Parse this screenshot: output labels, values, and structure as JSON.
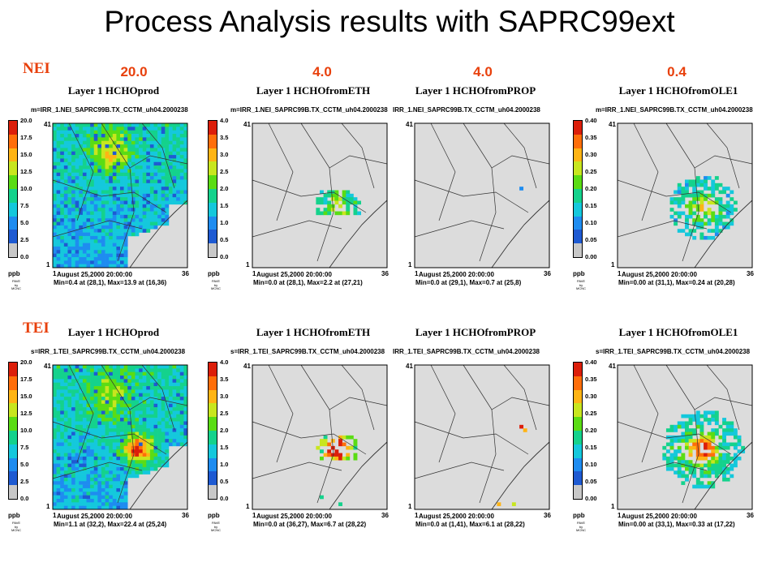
{
  "title": "Process Analysis results with SAPRC99ext",
  "row_labels": {
    "nei": "NEI",
    "tei": "TEI"
  },
  "scales": [
    "20.0",
    "4.0",
    "4.0",
    "0.4"
  ],
  "colors": {
    "accent": "#e8400c",
    "map_bg": "#dcdcdc",
    "legend": [
      "#c8c8c8",
      "#1e5ad2",
      "#1e8cf0",
      "#14c8dc",
      "#14d28c",
      "#5adc14",
      "#c8e61e",
      "#ffb414",
      "#ff6e0a",
      "#dc1e0a"
    ]
  },
  "panels": [
    {
      "title": "Layer 1  HCHOprod",
      "file": "m=IRR_1.NEI_SAPRC99B.TX_CCTM_uh04.2000238",
      "date": "August 25,2000 20:00:00",
      "minmax": "Min=0.4 at (28,1), Max=13.9 at (16,36)",
      "ticks": [
        "20.0",
        "17.5",
        "15.0",
        "12.5",
        "10.0",
        "7.5",
        "5.0",
        "2.5",
        "0.0"
      ],
      "unit": "ppb",
      "credit": "PAVE by MCNC",
      "y_top": "41",
      "y_bot": "1",
      "x_left": "1",
      "x_right": "36"
    },
    {
      "title": "Layer 1  HCHOfromETH",
      "file": "m=IRR_1.NEI_SAPRC99B.TX_CCTM_uh04.2000238",
      "date": "August 25,2000 20:00:00",
      "minmax": "Min=0.0 at (28,1), Max=2.2 at (27,21)",
      "ticks": [
        "4.0",
        "3.5",
        "3.0",
        "2.5",
        "2.0",
        "1.5",
        "1.0",
        "0.5",
        "0.0"
      ],
      "unit": "ppb",
      "credit": "PAVE by MCNC",
      "y_top": "41",
      "y_bot": "1",
      "x_left": "1",
      "x_right": "36"
    },
    {
      "title": "Layer 1  HCHOfromPROP",
      "file": "IRR_1.NEI_SAPRC99B.TX_CCTM_uh04.2000238",
      "date": "August 25,2000 20:00:00",
      "minmax": "Min=0.0 at (29,1), Max=0.7 at (25,8)",
      "ticks": [],
      "unit": "",
      "credit": "",
      "y_top": "41",
      "y_bot": "1",
      "x_left": "1",
      "x_right": "36"
    },
    {
      "title": "Layer 1  HCHOfromOLE1",
      "file": "m=IRR_1.NEI_SAPRC99B.TX_CCTM_uh04.2000238",
      "date": "August 25,2000 20:00:00",
      "minmax": "Min=0.00 at (31,1), Max=0.24 at (20,28)",
      "ticks": [
        "0.40",
        "0.35",
        "0.30",
        "0.25",
        "0.20",
        "0.15",
        "0.10",
        "0.05",
        "0.00"
      ],
      "unit": "ppb",
      "credit": "PAVE by MCNC",
      "y_top": "41",
      "y_bot": "1",
      "x_left": "1",
      "x_right": "36"
    },
    {
      "title": "Layer 1  HCHOprod",
      "file": "s=IRR_1.TEI_SAPRC99B.TX_CCTM_uh04.2000238",
      "date": "August 25,2000 20:00:00",
      "minmax": "Min=1.1 at (32,2), Max=22.4 at (25,24)",
      "ticks": [
        "20.0",
        "17.5",
        "15.0",
        "12.5",
        "10.0",
        "7.5",
        "5.0",
        "2.5",
        "0.0"
      ],
      "unit": "ppb",
      "credit": "PAVE by MCNC",
      "y_top": "41",
      "y_bot": "1",
      "x_left": "1",
      "x_right": "36"
    },
    {
      "title": "Layer 1  HCHOfromETH",
      "file": "s=IRR_1.TEI_SAPRC99B.TX_CCTM_uh04.2000238",
      "date": "August 25,2000 20:00:00",
      "minmax": "Min=0.0 at (36,27), Max=6.7 at (28,22)",
      "ticks": [
        "4.0",
        "3.5",
        "3.0",
        "2.5",
        "2.0",
        "1.5",
        "1.0",
        "0.5",
        "0.0"
      ],
      "unit": "ppb",
      "credit": "PAVE by MCNC",
      "y_top": "41",
      "y_bot": "1",
      "x_left": "1",
      "x_right": "36"
    },
    {
      "title": "Layer 1  HCHOfromPROP",
      "file": "IRR_1.TEI_SAPRC99B.TX_CCTM_uh04.2000238",
      "date": "August 25,2000 20:00:00",
      "minmax": "Min=0.0 at (1,41), Max=6.1 at (28,22)",
      "ticks": [],
      "unit": "",
      "credit": "",
      "y_top": "41",
      "y_bot": "1",
      "x_left": "1",
      "x_right": "36"
    },
    {
      "title": "Layer 1  HCHOfromOLE1",
      "file": "s=IRR_1.TEI_SAPRC99B.TX_CCTM_uh04.2000238",
      "date": "August 25,2000 20:00:00",
      "minmax": "Min=0.00 at (33,1), Max=0.33 at (17,22)",
      "ticks": [
        "0.40",
        "0.35",
        "0.30",
        "0.25",
        "0.20",
        "0.15",
        "0.10",
        "0.05",
        "0.00"
      ],
      "unit": "ppb",
      "credit": "PAVE by MCNC",
      "y_top": "41",
      "y_bot": "1",
      "x_left": "1",
      "x_right": "36"
    }
  ],
  "chart_data": {
    "type": "heatmap",
    "title": "Process Analysis results with SAPRC99ext",
    "grid": {
      "columns": 36,
      "rows": 41
    },
    "date": "August 25,2000 20:00:00",
    "unit": "ppb",
    "rows": [
      "NEI",
      "TEI"
    ],
    "variables": [
      "HCHOprod",
      "HCHOfromETH",
      "HCHOfromPROP",
      "HCHOfromOLE1"
    ],
    "color_scale_max": [
      20.0,
      4.0,
      4.0,
      0.4
    ],
    "maps": [
      {
        "row": "NEI",
        "variable": "HCHOprod",
        "min": 0.4,
        "min_at": [
          28,
          1
        ],
        "max": 13.9,
        "max_at": [
          16,
          36
        ]
      },
      {
        "row": "NEI",
        "variable": "HCHOfromETH",
        "min": 0.0,
        "min_at": [
          28,
          1
        ],
        "max": 2.2,
        "max_at": [
          27,
          21
        ]
      },
      {
        "row": "NEI",
        "variable": "HCHOfromPROP",
        "min": 0.0,
        "min_at": [
          29,
          1
        ],
        "max": 0.7,
        "max_at": [
          25,
          8
        ]
      },
      {
        "row": "NEI",
        "variable": "HCHOfromOLE1",
        "min": 0.0,
        "min_at": [
          31,
          1
        ],
        "max": 0.24,
        "max_at": [
          20,
          28
        ]
      },
      {
        "row": "TEI",
        "variable": "HCHOprod",
        "min": 1.1,
        "min_at": [
          32,
          2
        ],
        "max": 22.4,
        "max_at": [
          25,
          24
        ]
      },
      {
        "row": "TEI",
        "variable": "HCHOfromETH",
        "min": 0.0,
        "min_at": [
          36,
          27
        ],
        "max": 6.7,
        "max_at": [
          28,
          22
        ]
      },
      {
        "row": "TEI",
        "variable": "HCHOfromPROP",
        "min": 0.0,
        "min_at": [
          1,
          41
        ],
        "max": 6.1,
        "max_at": [
          28,
          22
        ]
      },
      {
        "row": "TEI",
        "variable": "HCHOfromOLE1",
        "min": 0.0,
        "min_at": [
          33,
          1
        ],
        "max": 0.33,
        "max_at": [
          17,
          22
        ]
      }
    ]
  }
}
